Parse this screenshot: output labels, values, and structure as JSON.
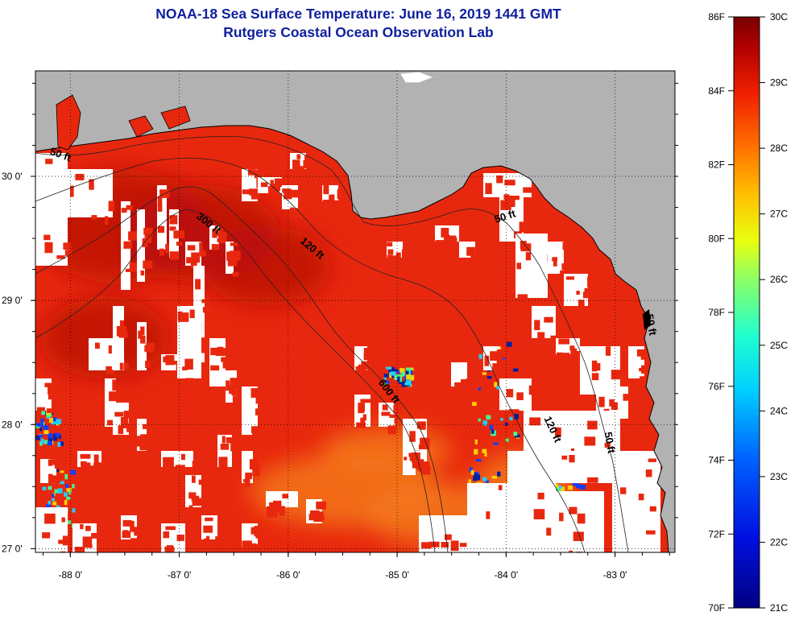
{
  "header": {
    "title": "NOAA-18 Sea Surface Temperature:  June 16, 2019 1441 GMT",
    "subtitle": "Rutgers Coastal Ocean Observation Lab"
  },
  "map": {
    "lon_range": [
      -88.32,
      -82.45
    ],
    "lat_range": [
      26.97,
      30.85
    ],
    "lon_ticks": [
      {
        "value": -88,
        "label": "-88 0'"
      },
      {
        "value": -87,
        "label": "-87 0'"
      },
      {
        "value": -86,
        "label": "-86 0'"
      },
      {
        "value": -85,
        "label": "-85 0'"
      },
      {
        "value": -84,
        "label": "-84 0'"
      },
      {
        "value": -83,
        "label": "-83 0'"
      }
    ],
    "lat_ticks": [
      {
        "value": 30,
        "label": "30 0'"
      },
      {
        "value": 29,
        "label": "29 0'"
      },
      {
        "value": 28,
        "label": "28 0'"
      },
      {
        "value": 27,
        "label": "27 0'"
      }
    ],
    "contour_labels": [
      {
        "text": "50 ft",
        "lon": -88.1,
        "lat": 30.15,
        "angle": 20
      },
      {
        "text": "300 ft",
        "lon": -86.75,
        "lat": 29.6,
        "angle": 38
      },
      {
        "text": "120 ft",
        "lon": -85.8,
        "lat": 29.4,
        "angle": 40
      },
      {
        "text": "50 ft",
        "lon": -84.0,
        "lat": 29.65,
        "angle": -18
      },
      {
        "text": "600 ft",
        "lon": -85.1,
        "lat": 28.25,
        "angle": 52
      },
      {
        "text": "120 ft",
        "lon": -83.6,
        "lat": 27.95,
        "angle": 65
      },
      {
        "text": "50 ft",
        "lon": -83.08,
        "lat": 27.85,
        "angle": 80
      },
      {
        "text": "50 ft",
        "lon": -82.7,
        "lat": 28.8,
        "angle": 80
      }
    ],
    "colors": {
      "land": "#b2b2b2",
      "cloud": "#ffffff",
      "sst_base": "#e8280e",
      "sst_warm": "#b81208",
      "sst_cool": "#f47a1a"
    }
  },
  "colorbar": {
    "fahrenheit": [
      "86F",
      "84F",
      "82F",
      "80F",
      "78F",
      "76F",
      "74F",
      "72F",
      "70F"
    ],
    "celsius": [
      "30C",
      "29C",
      "28C",
      "27C",
      "26C",
      "25C",
      "24C",
      "23C",
      "22C",
      "21C"
    ],
    "range_f": [
      70,
      86
    ],
    "range_c": [
      21,
      30
    ]
  }
}
